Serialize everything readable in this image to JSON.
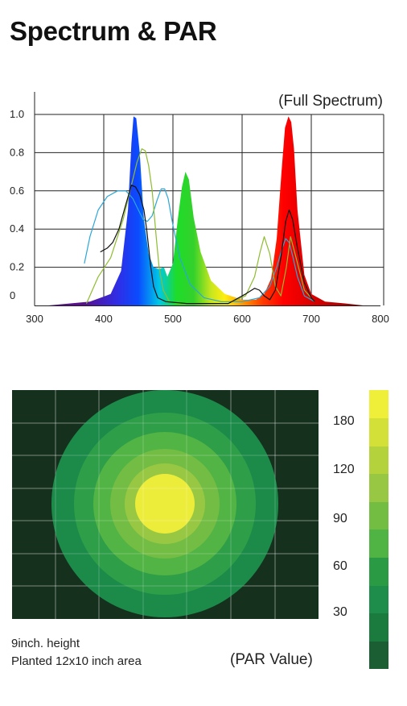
{
  "title": "Spectrum & PAR",
  "chart_data": [
    {
      "type": "line",
      "annotation": "(Full Spectrum)",
      "xlim": [
        300,
        800
      ],
      "ylim": [
        0,
        1.0
      ],
      "x_ticks": [
        "300",
        "400",
        "500",
        "600",
        "700",
        "800"
      ],
      "y_ticks": [
        "0",
        "0.2",
        "0.4",
        "0.6",
        "0.8",
        "1.0"
      ],
      "grid": true,
      "legend": "none",
      "filled_spectrum": {
        "x": [
          320,
          380,
          410,
          425,
          435,
          440,
          443,
          447,
          452,
          458,
          465,
          472,
          480,
          487,
          492,
          500,
          507,
          513,
          518,
          523,
          530,
          540,
          555,
          575,
          600,
          620,
          632,
          642,
          650,
          657,
          662,
          667,
          671,
          675,
          680,
          690,
          700,
          720,
          750,
          775
        ],
        "y": [
          0,
          0.02,
          0.06,
          0.18,
          0.5,
          0.85,
          0.99,
          0.98,
          0.8,
          0.45,
          0.27,
          0.2,
          0.19,
          0.2,
          0.15,
          0.22,
          0.45,
          0.62,
          0.7,
          0.66,
          0.46,
          0.28,
          0.13,
          0.06,
          0.03,
          0.03,
          0.06,
          0.14,
          0.35,
          0.7,
          0.93,
          0.99,
          0.96,
          0.82,
          0.5,
          0.16,
          0.06,
          0.02,
          0.01,
          0
        ]
      },
      "filled_color_stops": [
        {
          "nm": 370,
          "color": "#5a0f8c"
        },
        {
          "nm": 420,
          "color": "#2f2ee6"
        },
        {
          "nm": 450,
          "color": "#0a4cff"
        },
        {
          "nm": 480,
          "color": "#00c8e6"
        },
        {
          "nm": 505,
          "color": "#1edc2a"
        },
        {
          "nm": 530,
          "color": "#33d12b"
        },
        {
          "nm": 555,
          "color": "#c8e61e"
        },
        {
          "nm": 575,
          "color": "#ffee10"
        },
        {
          "nm": 600,
          "color": "#ff9a00"
        },
        {
          "nm": 630,
          "color": "#ff3a00"
        },
        {
          "nm": 660,
          "color": "#ff0000"
        },
        {
          "nm": 720,
          "color": "#c80000"
        },
        {
          "nm": 780,
          "color": "#8a0000"
        }
      ],
      "series": [
        {
          "color": "#2aa7d9",
          "x": [
            372,
            380,
            392,
            405,
            420,
            432,
            442,
            450,
            457,
            463,
            470,
            477,
            483,
            488,
            493,
            500,
            510,
            525,
            545,
            570,
            600,
            625,
            640,
            650,
            658,
            663,
            668,
            673,
            680,
            690,
            705
          ],
          "y": [
            0.22,
            0.36,
            0.5,
            0.57,
            0.6,
            0.6,
            0.56,
            0.5,
            0.45,
            0.44,
            0.47,
            0.55,
            0.61,
            0.61,
            0.56,
            0.42,
            0.25,
            0.11,
            0.04,
            0.02,
            0.02,
            0.04,
            0.1,
            0.2,
            0.3,
            0.35,
            0.33,
            0.26,
            0.15,
            0.05,
            0.02
          ]
        },
        {
          "color": "#8fbc2f",
          "x": [
            375,
            392,
            410,
            428,
            440,
            448,
            455,
            460,
            465,
            470,
            476,
            480,
            486,
            495,
            510,
            540,
            580,
            605,
            618,
            626,
            632,
            640,
            648,
            656,
            664,
            670,
            678,
            690,
            705
          ],
          "y": [
            0.01,
            0.15,
            0.25,
            0.45,
            0.63,
            0.75,
            0.82,
            0.81,
            0.73,
            0.6,
            0.35,
            0.2,
            0.08,
            0.02,
            0.01,
            0.01,
            0.01,
            0.05,
            0.15,
            0.28,
            0.36,
            0.27,
            0.1,
            0.05,
            0.2,
            0.36,
            0.25,
            0.08,
            0.02
          ]
        },
        {
          "color": "#111111",
          "x": [
            395,
            405,
            413,
            422,
            432,
            440,
            446,
            452,
            458,
            462,
            468,
            472,
            478,
            490,
            520,
            580,
            605,
            618,
            625,
            632,
            640,
            648,
            656,
            663,
            668,
            673,
            680,
            690,
            700,
            705
          ],
          "y": [
            0.28,
            0.3,
            0.33,
            0.4,
            0.53,
            0.63,
            0.62,
            0.58,
            0.5,
            0.4,
            0.2,
            0.1,
            0.04,
            0.02,
            0.01,
            0.01,
            0.06,
            0.09,
            0.08,
            0.05,
            0.03,
            0.08,
            0.25,
            0.44,
            0.5,
            0.45,
            0.3,
            0.12,
            0.04,
            0.02
          ]
        }
      ]
    },
    {
      "type": "heatmap",
      "note_line1": "9inch. height",
      "note_line2": "Planted 12x10 inch area",
      "unit_label": "(PAR Value)",
      "colorbar_ticks": [
        "30",
        "60",
        "90",
        "120",
        "180"
      ],
      "colorbar_colors": [
        "#1b5e33",
        "#1b7a3e",
        "#1e8c4a",
        "#2a9a45",
        "#4fb444",
        "#72bd42",
        "#98c843",
        "#b4d23c",
        "#d2e037",
        "#efef3a"
      ],
      "ring_colors": [
        "#1c8b4a",
        "#2f9e48",
        "#52b444",
        "#74bd44",
        "#98c843",
        "#ecec3a"
      ],
      "background_color": "#15301d"
    }
  ]
}
